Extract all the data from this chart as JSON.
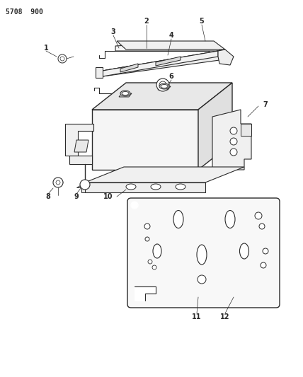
{
  "title": "5708  900",
  "bg_color": "#ffffff",
  "lc": "#2a2a2a",
  "lw_main": 0.9,
  "lw_thin": 0.6,
  "fig_w": 4.28,
  "fig_h": 5.33,
  "dpi": 100
}
